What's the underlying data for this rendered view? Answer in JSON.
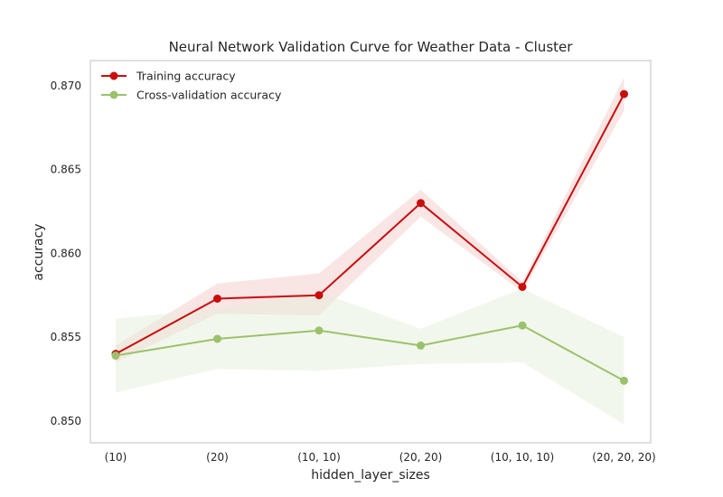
{
  "chart_data": {
    "type": "line",
    "title": "Neural Network Validation Curve for Weather Data - Cluster",
    "xlabel": "hidden_layer_sizes",
    "ylabel": "accuracy",
    "categories": [
      "(10)",
      "(20)",
      "(10, 10)",
      "(20, 20)",
      "(10, 10, 10)",
      "(20, 20, 20)"
    ],
    "ylim": [
      0.8487,
      0.8715
    ],
    "yticks": [
      "0.850",
      "0.855",
      "0.860",
      "0.865",
      "0.870"
    ],
    "grid": false,
    "legend_position": "top-left",
    "series": [
      {
        "name": "Training accuracy",
        "color": "#c90d0d",
        "band_color": "#f5c6c6",
        "values": [
          0.854,
          0.8573,
          0.8575,
          0.863,
          0.858,
          0.8695
        ],
        "lower": [
          0.8535,
          0.8564,
          0.8563,
          0.8622,
          0.8577,
          0.8685
        ],
        "upper": [
          0.8545,
          0.8582,
          0.8588,
          0.8638,
          0.8583,
          0.8705
        ]
      },
      {
        "name": "Cross-validation accuracy",
        "color": "#9bc26b",
        "band_color": "#e3edd6",
        "values": [
          0.8539,
          0.8549,
          0.8554,
          0.8545,
          0.8557,
          0.8524
        ],
        "lower": [
          0.8517,
          0.8531,
          0.853,
          0.8534,
          0.8535,
          0.8498
        ],
        "upper": [
          0.8561,
          0.8567,
          0.8577,
          0.8555,
          0.8579,
          0.855
        ]
      }
    ]
  }
}
